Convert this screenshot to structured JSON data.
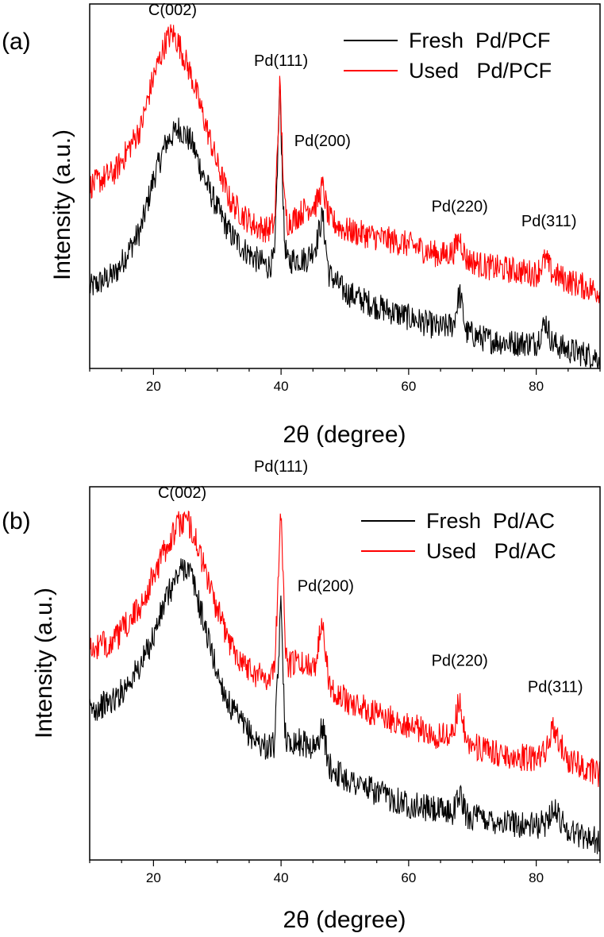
{
  "chart_data": [
    {
      "type": "line",
      "panel_label": "(a)",
      "xlabel": "2θ (degree)",
      "ylabel": "Intensity (a.u.)",
      "xlim": [
        10,
        90
      ],
      "xticks": [
        20,
        40,
        60,
        80
      ],
      "yticks_shown": false,
      "legend_position": "top-right",
      "series": [
        {
          "name": "Fresh  Pd/PCF",
          "color": "#000000",
          "x": [
            10,
            14,
            18,
            20,
            22,
            24,
            26,
            28,
            30,
            32,
            34,
            36,
            38,
            39,
            39.8,
            40.5,
            41,
            42,
            44,
            45.5,
            46.5,
            47.5,
            50,
            55,
            60,
            65,
            67,
            68,
            69,
            72,
            76,
            80,
            81.5,
            82.5,
            85,
            90
          ],
          "y": [
            0.22,
            0.26,
            0.38,
            0.52,
            0.62,
            0.66,
            0.62,
            0.52,
            0.44,
            0.37,
            0.33,
            0.3,
            0.28,
            0.3,
            0.78,
            0.36,
            0.29,
            0.3,
            0.3,
            0.34,
            0.42,
            0.26,
            0.21,
            0.17,
            0.14,
            0.11,
            0.12,
            0.21,
            0.1,
            0.08,
            0.07,
            0.07,
            0.13,
            0.07,
            0.05,
            0.03
          ]
        },
        {
          "name": "Used   Pd/PCF",
          "color": "#ff0000",
          "x": [
            10,
            14,
            18,
            20,
            22,
            23,
            24,
            26,
            28,
            30,
            32,
            34,
            36,
            38,
            39,
            39.8,
            40.5,
            41,
            42,
            44,
            45.5,
            46.5,
            47.5,
            50,
            55,
            60,
            65,
            67,
            68,
            69,
            72,
            76,
            80,
            81.5,
            82.5,
            85,
            90
          ],
          "y": [
            0.5,
            0.54,
            0.66,
            0.8,
            0.9,
            0.92,
            0.89,
            0.8,
            0.68,
            0.56,
            0.46,
            0.42,
            0.39,
            0.38,
            0.4,
            0.78,
            0.46,
            0.4,
            0.41,
            0.44,
            0.45,
            0.5,
            0.41,
            0.38,
            0.36,
            0.34,
            0.31,
            0.32,
            0.36,
            0.3,
            0.28,
            0.27,
            0.26,
            0.3,
            0.26,
            0.24,
            0.21
          ]
        }
      ],
      "annotations": [
        {
          "text": "C(002)",
          "x": 23,
          "y": 0.97
        },
        {
          "text": "Pd(111)",
          "x": 40,
          "y": 0.83
        },
        {
          "text": "Pd(200)",
          "x": 46.5,
          "y": 0.61
        },
        {
          "text": "Pd(220)",
          "x": 68,
          "y": 0.43
        },
        {
          "text": "Pd(311)",
          "x": 82,
          "y": 0.39
        }
      ]
    },
    {
      "type": "line",
      "panel_label": "(b)",
      "xlabel": "2θ (degree)",
      "ylabel": "Intensity (a.u.)",
      "xlim": [
        10,
        90
      ],
      "xticks": [
        20,
        40,
        60,
        80
      ],
      "yticks_shown": false,
      "legend_position": "top-right",
      "series": [
        {
          "name": "Fresh  Pd/AC",
          "color": "#000000",
          "x": [
            10,
            14,
            18,
            20,
            22,
            24,
            25,
            26,
            28,
            30,
            32,
            34,
            36,
            38,
            39,
            40,
            40.6,
            41,
            42,
            44,
            45.5,
            46.5,
            47.5,
            50,
            55,
            60,
            65,
            67,
            68,
            69,
            72,
            76,
            80,
            81.5,
            82.5,
            85,
            90
          ],
          "y": [
            0.4,
            0.43,
            0.52,
            0.6,
            0.7,
            0.77,
            0.79,
            0.76,
            0.63,
            0.5,
            0.41,
            0.36,
            0.32,
            0.3,
            0.31,
            0.69,
            0.36,
            0.31,
            0.32,
            0.31,
            0.3,
            0.36,
            0.25,
            0.22,
            0.18,
            0.15,
            0.13,
            0.13,
            0.18,
            0.12,
            0.11,
            0.1,
            0.09,
            0.1,
            0.14,
            0.08,
            0.05
          ]
        },
        {
          "name": "Used   Pd/AC",
          "color": "#ff0000",
          "x": [
            10,
            14,
            18,
            20,
            22,
            24,
            25,
            26,
            28,
            30,
            32,
            34,
            36,
            38,
            39,
            40,
            40.6,
            41,
            42,
            44,
            45.5,
            46.5,
            47.5,
            50,
            55,
            60,
            65,
            67,
            68,
            69,
            72,
            76,
            80,
            81.5,
            82.5,
            85,
            90
          ],
          "y": [
            0.56,
            0.59,
            0.68,
            0.76,
            0.84,
            0.9,
            0.91,
            0.89,
            0.78,
            0.67,
            0.58,
            0.53,
            0.5,
            0.49,
            0.51,
            0.96,
            0.58,
            0.52,
            0.53,
            0.52,
            0.53,
            0.66,
            0.47,
            0.43,
            0.39,
            0.36,
            0.33,
            0.34,
            0.44,
            0.32,
            0.29,
            0.28,
            0.27,
            0.29,
            0.35,
            0.27,
            0.23
          ]
        }
      ],
      "annotations": [
        {
          "text": "C(002)",
          "x": 24.5,
          "y": 0.97
        },
        {
          "text": "Pd(111)",
          "x": 40,
          "y": 1.04
        },
        {
          "text": "Pd(200)",
          "x": 47,
          "y": 0.72
        },
        {
          "text": "Pd(220)",
          "x": 68,
          "y": 0.52
        },
        {
          "text": "Pd(311)",
          "x": 83,
          "y": 0.45
        }
      ]
    }
  ]
}
